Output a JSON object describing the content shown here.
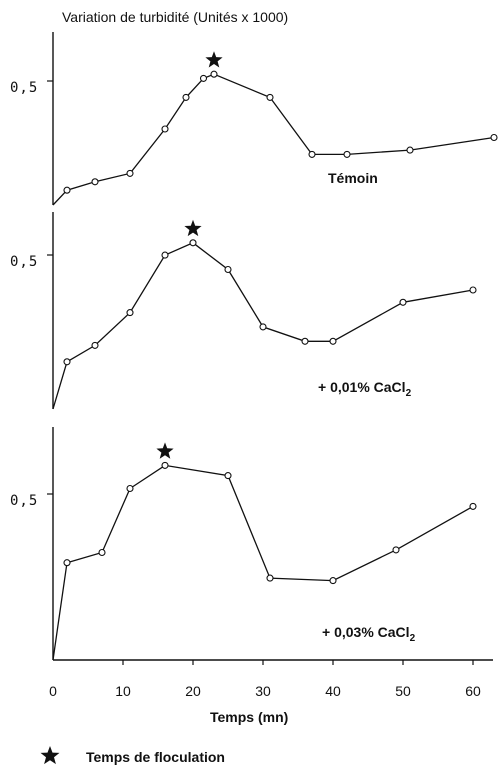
{
  "title": "Variation de turbidité (Unités x 1000)",
  "x_axis": {
    "label": "Temps (mn)",
    "ticks": [
      "0",
      "10",
      "20",
      "30",
      "40",
      "50",
      "60"
    ]
  },
  "legend": {
    "symbol": "star",
    "label": "Temps de floculation"
  },
  "chart_data": [
    {
      "type": "line",
      "series_label": "Témoin",
      "ytick_label": "0,5",
      "x": [
        0,
        2,
        6,
        11,
        16,
        19,
        21.5,
        23,
        31,
        37,
        42,
        51,
        63
      ],
      "y": [
        0,
        0.07,
        0.11,
        0.15,
        0.36,
        0.51,
        0.6,
        0.62,
        0.51,
        0.24,
        0.24,
        0.26,
        0.32
      ],
      "flocculation_time": 23,
      "ylim": [
        0,
        0.82
      ]
    },
    {
      "type": "line",
      "series_label": "+ 0,01% CaCl",
      "ytick_label": "0,5",
      "x": [
        0,
        2,
        6,
        11,
        16,
        20,
        25,
        30,
        36,
        40,
        50,
        60
      ],
      "y": [
        0,
        0.23,
        0.31,
        0.47,
        0.75,
        0.81,
        0.68,
        0.4,
        0.33,
        0.33,
        0.52,
        0.58
      ],
      "flocculation_time": 20,
      "ylim": [
        0,
        0.96
      ]
    },
    {
      "type": "line",
      "series_label": "+ 0,03% CaCl",
      "ytick_label": "0,5",
      "x": [
        0,
        2,
        7,
        11,
        16,
        25,
        31,
        40,
        49,
        60
      ],
      "y": [
        0,
        0.38,
        0.42,
        0.67,
        0.76,
        0.72,
        0.32,
        0.31,
        0.43,
        0.6
      ],
      "flocculation_time": 16,
      "ylim": [
        0,
        0.91
      ]
    }
  ]
}
